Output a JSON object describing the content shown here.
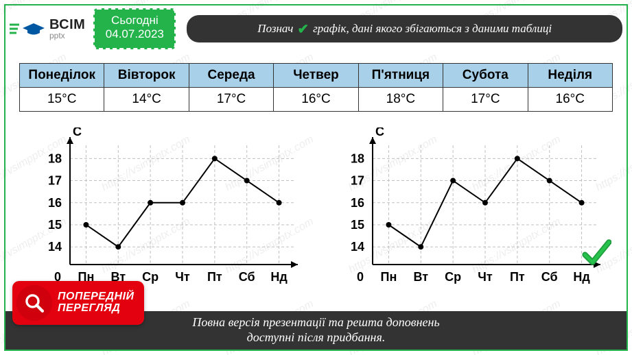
{
  "logo": {
    "top": "ВСІМ",
    "bot": "pptx"
  },
  "date_badge": {
    "line1": "Сьогодні",
    "line2": "04.07.2023",
    "bg_color": "#24b34b",
    "text_color": "#ffffff",
    "border_dash_color": "#ffffff"
  },
  "title": {
    "pre": "Познач",
    "post": "графік, дані якого збігаються з даними таблиці",
    "bg_color": "#333333",
    "text_color": "#ffffff",
    "check_color": "#24b34b",
    "fontsize": 17,
    "font_style": "italic"
  },
  "table": {
    "headers": [
      "Понеділок",
      "Вівторок",
      "Середа",
      "Четвер",
      "П'ятниця",
      "Субота",
      "Неділя"
    ],
    "values": [
      "15°C",
      "14°C",
      "17°C",
      "16°C",
      "18°C",
      "17°C",
      "16°C"
    ],
    "header_bg": "#a9d0e9",
    "cell_bg": "#ffffff",
    "border_color": "#333333",
    "header_fontsize": 19,
    "cell_fontsize": 19,
    "font_weight_header": "bold"
  },
  "charts": {
    "common": {
      "y_label": "C",
      "x_label_origin": "0",
      "y_ticks": [
        14,
        15,
        16,
        17,
        18
      ],
      "ylim": [
        13.2,
        18.6
      ],
      "x_categories": [
        "Пн",
        "Вт",
        "Ср",
        "Чт",
        "Пт",
        "Сб",
        "Нд"
      ],
      "axis_color": "#000000",
      "grid_color": "#bfbfbf",
      "line_color": "#000000",
      "marker_fill": "#000000",
      "marker_radius": 4,
      "line_width": 2,
      "dash_pattern": "4,3",
      "label_fontsize": 18,
      "tick_fontsize": 18,
      "background_color": "#ffffff"
    },
    "left": {
      "values": [
        15,
        14,
        16,
        16,
        18,
        17,
        16
      ],
      "correct": false
    },
    "right": {
      "values": [
        15,
        14,
        17,
        16,
        18,
        17,
        16
      ],
      "correct": true
    }
  },
  "check_mark": {
    "color": "#1f9e3e",
    "fontsize": 48
  },
  "preview_badge": {
    "line1": "ПОПЕРЕДНІЙ",
    "line2": "ПЕРЕГЛЯД",
    "bg_color": "#e3000f",
    "circle_color": "#d0000c",
    "icon_color": "#ffffff",
    "text_color": "#ffffff",
    "fontsize": 16
  },
  "footer": {
    "line1": "Повна версія презентації та решта доповнень",
    "line2": "доступні після придбання.",
    "bg_color": "#333333",
    "text_color": "#ffffff",
    "fontsize": 18,
    "font_style": "italic"
  },
  "frame_border_color": "#24b34b",
  "watermark_text": "https://vsimpptx.com",
  "watermark_color": "rgba(0,0,0,0.07)"
}
